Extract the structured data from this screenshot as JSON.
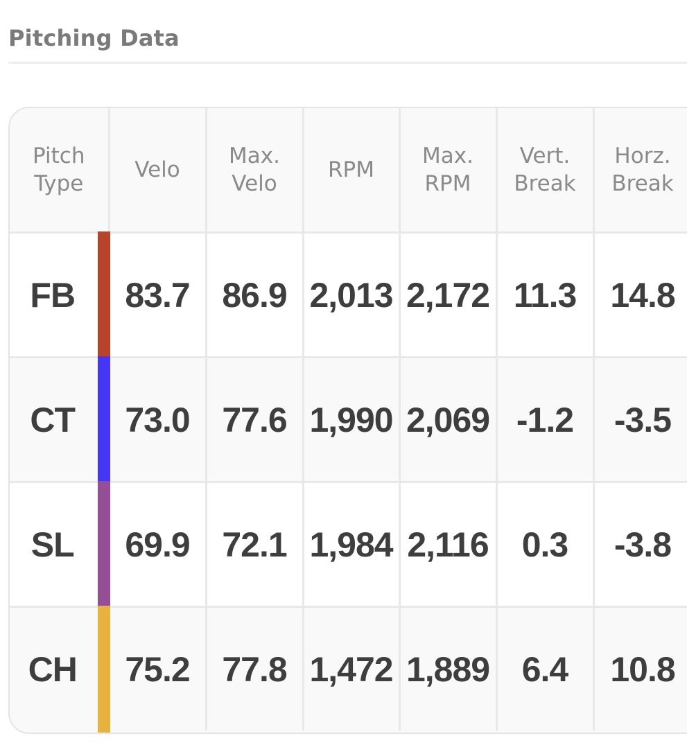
{
  "section": {
    "title": "Pitching Data"
  },
  "table": {
    "headers": {
      "pitch_type": "Pitch\nType",
      "velo": "Velo",
      "max_velo": "Max.\nVelo",
      "rpm": "RPM",
      "max_rpm": "Max.\nRPM",
      "vert_break": "Vert.\nBreak",
      "horz_break": "Horz.\nBreak"
    },
    "rows": [
      {
        "type": "FB",
        "color": "#b8432b",
        "velo": "83.7",
        "max_velo": "86.9",
        "rpm": "2,013",
        "max_rpm": "2,172",
        "vert_break": "11.3",
        "horz_break": "14.8"
      },
      {
        "type": "CT",
        "color": "#4535f5",
        "velo": "73.0",
        "max_velo": "77.6",
        "rpm": "1,990",
        "max_rpm": "2,069",
        "vert_break": "-1.2",
        "horz_break": "-3.5"
      },
      {
        "type": "SL",
        "color": "#944f95",
        "velo": "69.9",
        "max_velo": "72.1",
        "rpm": "1,984",
        "max_rpm": "2,116",
        "vert_break": "0.3",
        "horz_break": "-3.8"
      },
      {
        "type": "CH",
        "color": "#e8b23e",
        "velo": "75.2",
        "max_velo": "77.8",
        "rpm": "1,472",
        "max_rpm": "1,889",
        "vert_break": "6.4",
        "horz_break": "10.8"
      }
    ]
  }
}
